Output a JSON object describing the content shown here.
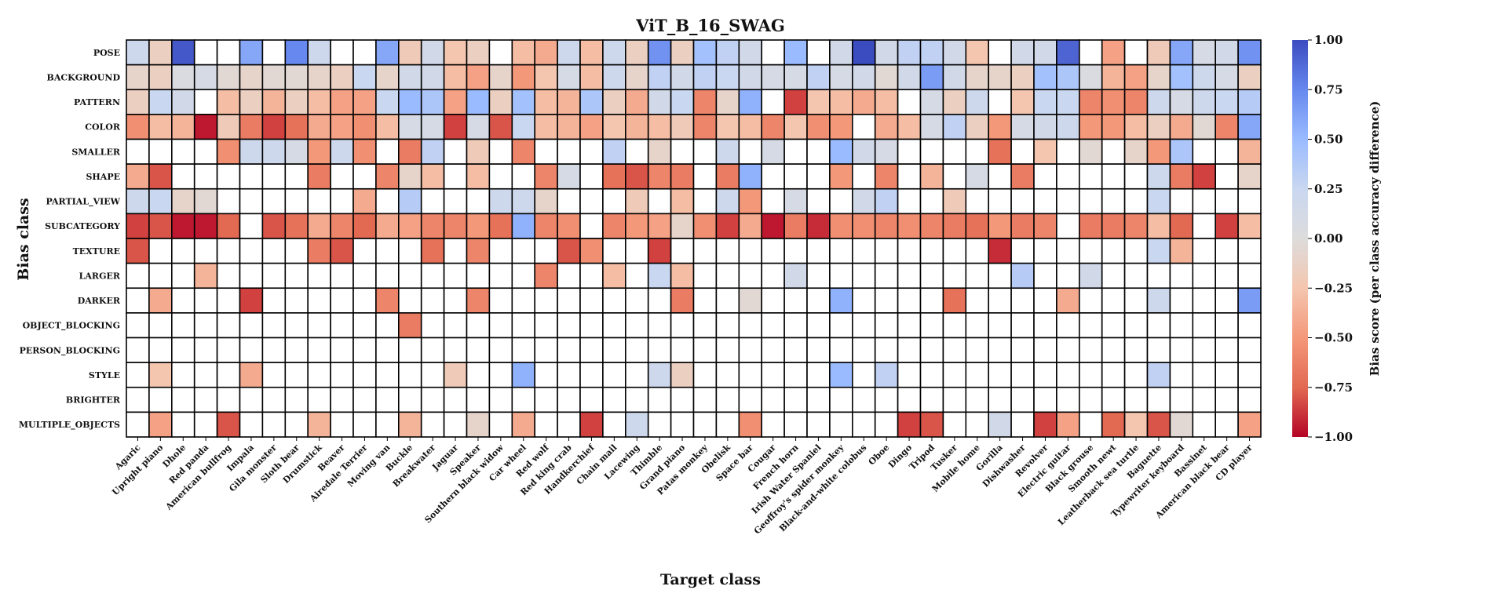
{
  "chart_data": {
    "type": "heatmap",
    "title": "ViT_B_16_SWAG",
    "xlabel": "Target class",
    "ylabel": "Bias class",
    "colorbar_label": "Bias score (per class accuracy difference)",
    "colorbar_ticks": [
      "1.00",
      "0.75",
      "0.50",
      "0.25",
      "0.00",
      "−0.25",
      "−0.50",
      "−0.75",
      "−1.00"
    ],
    "vrange": [
      -1,
      1
    ],
    "colormap": "coolwarm",
    "y_categories": [
      "POSE",
      "BACKGROUND",
      "PATTERN",
      "COLOR",
      "SMALLER",
      "SHAPE",
      "PARTIAL_VIEW",
      "SUBCATEGORY",
      "TEXTURE",
      "LARGER",
      "DARKER",
      "OBJECT_BLOCKING",
      "PERSON_BLOCKING",
      "STYLE",
      "BRIGHTER",
      "MULTIPLE_OBJECTS"
    ],
    "x_categories": [
      "Agaric",
      "Upright piano",
      "Dhole",
      "Red panda",
      "American bullfrog",
      "Impala",
      "Gila monster",
      "Sloth bear",
      "Drumstick",
      "Beaver",
      "Airedale Terrier",
      "Moving van",
      "Buckle",
      "Breakwater",
      "Jaguar",
      "Speaker",
      "Southern black widow",
      "Car wheel",
      "Red wolf",
      "Red king crab",
      "Handkerchief",
      "Chain mail",
      "Lacewing",
      "Thimble",
      "Grand piano",
      "Patas monkey",
      "Obelisk",
      "Space bar",
      "Cougar",
      "French horn",
      "Irish Water Spaniel",
      "Geoffroy's spider monkey",
      "Black-and-white colobus",
      "Oboe",
      "Dingo",
      "Tripod",
      "Tusker",
      "Mobile home",
      "Gorilla",
      "Dishwasher",
      "Revolver",
      "Electric guitar",
      "Black grouse",
      "Smooth newt",
      "Leatherback sea turtle",
      "Baguette",
      "Typewriter keyboard",
      "Bassinet",
      "American black bear",
      "CD player"
    ],
    "values": [
      [
        0.2,
        -0.15,
        0.95,
        0,
        0,
        0.6,
        0,
        0.75,
        0.2,
        0,
        0,
        0.6,
        -0.2,
        0.15,
        -0.25,
        -0.15,
        0,
        -0.3,
        -0.4,
        0.2,
        -0.3,
        0.2,
        -0.15,
        0.7,
        -0.15,
        0.45,
        0.3,
        0.15,
        0,
        0.5,
        0,
        0.15,
        1.0,
        0.15,
        0.3,
        0.3,
        0.15,
        -0.25,
        0,
        0.15,
        0.15,
        0.9,
        0,
        -0.45,
        0,
        -0.2,
        0.6,
        0.1,
        0.15,
        0.7
      ],
      [
        -0.1,
        -0.15,
        0.05,
        0.1,
        -0.05,
        -0.1,
        -0.05,
        -0.05,
        -0.1,
        -0.15,
        0.25,
        -0.1,
        0.15,
        0.15,
        -0.3,
        -0.45,
        -0.1,
        -0.5,
        -0.25,
        0.1,
        -0.3,
        0.2,
        -0.1,
        0.3,
        0.15,
        0.3,
        0.25,
        0.15,
        0.1,
        0.1,
        0.3,
        0.1,
        0.15,
        -0.05,
        0.15,
        0.65,
        0.15,
        -0.1,
        -0.1,
        -0.15,
        0.45,
        0.4,
        0.05,
        -0.35,
        -0.45,
        -0.1,
        0.45,
        0.2,
        0.1,
        -0.15
      ],
      [
        -0.15,
        0.25,
        0.15,
        0,
        -0.3,
        -0.15,
        -0.35,
        -0.15,
        -0.3,
        -0.45,
        -0.45,
        0.25,
        0.5,
        0.4,
        -0.45,
        0.5,
        -0.15,
        0.45,
        -0.3,
        -0.35,
        0.4,
        -0.15,
        -0.4,
        0.15,
        0.25,
        -0.6,
        -0.1,
        0.55,
        0,
        -0.85,
        -0.25,
        -0.3,
        -0.4,
        -0.3,
        0,
        0.1,
        -0.15,
        0.2,
        0,
        -0.25,
        0.25,
        0.25,
        -0.6,
        -0.55,
        -0.6,
        0.2,
        0.1,
        0.2,
        0.25,
        0.35
      ],
      [
        -0.55,
        -0.3,
        -0.35,
        -0.95,
        -0.2,
        -0.65,
        -0.85,
        -0.7,
        -0.4,
        -0.45,
        -0.55,
        -0.3,
        0.1,
        0.1,
        -0.85,
        0.1,
        -0.8,
        0.25,
        -0.3,
        -0.35,
        -0.45,
        -0.25,
        -0.35,
        -0.3,
        -0.2,
        -0.6,
        -0.25,
        -0.3,
        -0.6,
        -0.25,
        -0.55,
        -0.5,
        0,
        -0.4,
        -0.3,
        0.1,
        0.3,
        -0.15,
        -0.5,
        0.1,
        0.15,
        0.2,
        -0.5,
        -0.5,
        -0.3,
        -0.15,
        -0.4,
        -0.05,
        -0.6,
        0.6
      ],
      [
        0,
        0,
        0,
        0,
        -0.55,
        0.2,
        0.2,
        0.1,
        -0.5,
        0.2,
        -0.55,
        0,
        -0.65,
        0.3,
        0,
        -0.2,
        0,
        -0.6,
        0,
        0,
        0,
        0.3,
        0,
        -0.1,
        0,
        0,
        0.2,
        0,
        0.1,
        0,
        0,
        0.5,
        0.15,
        0.1,
        0,
        0,
        0,
        0,
        -0.7,
        0,
        -0.25,
        0,
        -0.05,
        0,
        -0.1,
        -0.5,
        0.4,
        0,
        0,
        -0.35
      ],
      [
        -0.4,
        -0.8,
        0,
        0,
        0,
        0,
        0,
        0,
        -0.65,
        0,
        0,
        -0.6,
        -0.1,
        -0.3,
        0,
        -0.3,
        0,
        0,
        -0.6,
        0.1,
        0,
        -0.7,
        -0.8,
        -0.6,
        -0.65,
        0,
        -0.65,
        0.55,
        0,
        0,
        0,
        -0.5,
        0,
        -0.6,
        0,
        -0.35,
        0,
        0.1,
        0,
        -0.65,
        0,
        0,
        0,
        0,
        0,
        0.2,
        -0.65,
        -0.85,
        0,
        -0.1
      ],
      [
        0.2,
        0.25,
        -0.1,
        -0.05,
        0,
        0,
        0,
        0,
        0,
        0,
        -0.4,
        0,
        0.35,
        0,
        0,
        0,
        0.2,
        0.2,
        -0.1,
        0,
        0,
        0,
        -0.2,
        0,
        -0.3,
        0,
        0.2,
        -0.5,
        0,
        0.1,
        0,
        0,
        0.15,
        0.3,
        0,
        0,
        -0.2,
        0,
        0,
        0,
        0,
        0,
        0,
        0,
        0,
        0.25,
        0,
        0,
        0,
        0
      ],
      [
        -0.85,
        -0.8,
        -0.95,
        -0.95,
        -0.75,
        0,
        -0.8,
        -0.7,
        -0.4,
        -0.6,
        -0.75,
        -0.4,
        -0.45,
        -0.6,
        -0.6,
        -0.5,
        -0.7,
        0.55,
        -0.6,
        -0.55,
        0,
        -0.6,
        -0.5,
        -0.45,
        -0.1,
        -0.55,
        -0.85,
        -0.4,
        -0.95,
        -0.65,
        -0.9,
        -0.55,
        -0.55,
        -0.6,
        -0.55,
        -0.6,
        -0.65,
        -0.7,
        -0.5,
        -0.65,
        -0.6,
        0,
        -0.65,
        -0.65,
        -0.6,
        -0.3,
        -0.75,
        0,
        -0.85,
        -0.3
      ],
      [
        -0.8,
        0,
        0,
        0,
        0,
        0,
        0,
        0,
        -0.65,
        -0.8,
        0,
        0,
        0,
        -0.7,
        0,
        -0.6,
        0,
        0,
        0,
        -0.8,
        -0.55,
        0,
        0,
        -0.85,
        0,
        0,
        0,
        0,
        0,
        0,
        0,
        0,
        0,
        0,
        0,
        0,
        0,
        0,
        -0.9,
        0,
        0,
        0,
        0,
        0,
        0,
        0.25,
        -0.35,
        0,
        0,
        0
      ],
      [
        0,
        0,
        0,
        -0.35,
        0,
        0,
        0,
        0,
        0,
        0,
        0,
        0,
        0,
        0,
        0,
        0,
        0,
        0,
        -0.6,
        0,
        0,
        -0.3,
        0,
        0.25,
        -0.3,
        0,
        0,
        0,
        0,
        0.15,
        0,
        0,
        0,
        0,
        0,
        0,
        0,
        0,
        0,
        0.35,
        0,
        0,
        0.15,
        0,
        0,
        0,
        0,
        0,
        0,
        0
      ],
      [
        0,
        -0.4,
        0,
        0,
        0,
        -0.85,
        0,
        0,
        0,
        0,
        0,
        -0.6,
        0,
        0,
        0,
        -0.6,
        0,
        0,
        0,
        0,
        0,
        0,
        0,
        0,
        -0.65,
        0,
        0,
        -0.05,
        0,
        0,
        0,
        0.55,
        0,
        0,
        0,
        0,
        -0.7,
        0,
        0,
        0,
        0,
        -0.4,
        0,
        0,
        0,
        0.2,
        0,
        0,
        0,
        0.65
      ],
      [
        0,
        0,
        0,
        0,
        0,
        0,
        0,
        0,
        0,
        0,
        0,
        0,
        -0.65,
        0,
        0,
        0,
        0,
        0,
        0,
        0,
        0,
        0,
        0,
        0,
        0,
        0,
        0,
        0,
        0,
        0,
        0,
        0,
        0,
        0,
        0,
        0,
        0,
        0,
        0,
        0,
        0,
        0,
        0,
        0,
        0,
        0,
        0,
        0,
        0,
        0
      ],
      [
        0,
        0,
        0,
        0,
        0,
        0,
        0,
        0,
        0,
        0,
        0,
        0,
        0,
        0,
        0,
        0,
        0,
        0,
        0,
        0,
        0,
        0,
        0,
        0,
        0,
        0,
        0,
        0,
        0,
        0,
        0,
        0,
        0,
        0,
        0,
        0,
        0,
        0,
        0,
        0,
        0,
        0,
        0,
        0,
        0,
        0,
        0,
        0,
        0,
        0
      ],
      [
        0,
        -0.25,
        0,
        0,
        0,
        -0.4,
        0,
        0,
        0,
        0,
        0,
        0,
        0,
        0,
        -0.2,
        0,
        0,
        0.55,
        0,
        0,
        0,
        0,
        0,
        0.2,
        -0.15,
        0,
        0,
        0,
        0,
        0,
        0,
        0.5,
        0,
        0.3,
        0,
        0,
        0,
        0,
        0,
        0,
        0,
        0,
        0,
        0,
        0,
        0.3,
        0,
        0,
        0,
        0
      ],
      [
        0,
        0,
        0,
        0,
        0,
        0,
        0,
        0,
        0,
        0,
        0,
        0,
        0,
        0,
        0,
        0,
        0,
        0,
        0,
        0,
        0,
        0,
        0,
        0,
        0,
        0,
        0,
        0,
        0,
        0,
        0,
        0,
        0,
        0,
        0,
        0,
        0,
        0,
        0,
        0,
        0,
        0,
        0,
        0,
        0,
        0,
        0,
        0,
        0,
        0
      ],
      [
        0,
        -0.45,
        0,
        0,
        -0.8,
        0,
        0,
        0,
        -0.35,
        0,
        0,
        0,
        -0.35,
        0,
        0,
        -0.1,
        0,
        -0.4,
        0,
        0,
        -0.85,
        0,
        0.2,
        0,
        0,
        0,
        0,
        -0.55,
        0,
        0,
        0,
        0,
        0,
        0,
        -0.85,
        -0.8,
        0,
        0,
        0.15,
        0,
        -0.85,
        -0.45,
        0,
        -0.75,
        -0.25,
        -0.8,
        -0.05,
        0,
        0,
        -0.45
      ]
    ]
  }
}
